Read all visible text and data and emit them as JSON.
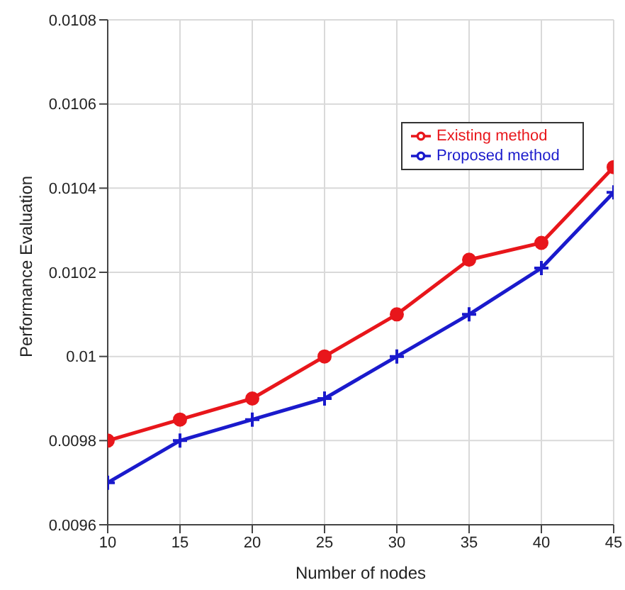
{
  "chart_data": {
    "type": "line",
    "xlabel": "Number of nodes",
    "ylabel": "Performance Evaluation",
    "x": [
      10,
      15,
      20,
      25,
      30,
      35,
      40,
      45
    ],
    "series": [
      {
        "name": "Existing method",
        "color": "#e8161b",
        "marker": "circle",
        "values": [
          0.0098,
          0.00985,
          0.0099,
          0.01,
          0.0101,
          0.01023,
          0.01027,
          0.01045
        ]
      },
      {
        "name": "Proposed method",
        "color": "#1a1acc",
        "marker": "cross",
        "values": [
          0.0097,
          0.0098,
          0.00985,
          0.0099,
          0.01,
          0.0101,
          0.01021,
          0.01039
        ]
      }
    ],
    "xlim": [
      10,
      45
    ],
    "xticks": [
      10,
      15,
      20,
      25,
      30,
      35,
      40,
      45
    ],
    "ylim": [
      0.0096,
      0.0108
    ],
    "yticks": [
      0.0096,
      0.0098,
      0.01,
      0.0102,
      0.0104,
      0.0106,
      0.0108
    ],
    "grid": true,
    "legend": "top right",
    "line_style": "solid"
  }
}
